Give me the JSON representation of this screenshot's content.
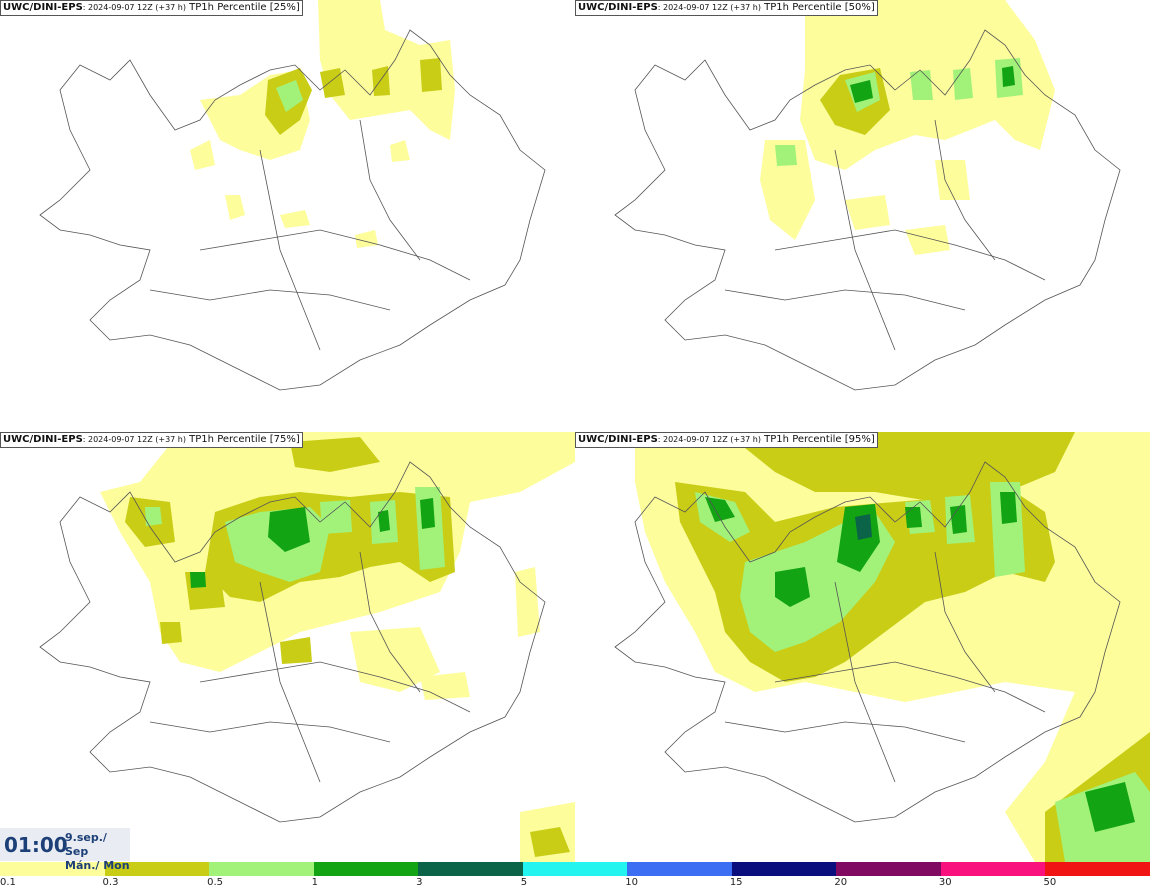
{
  "panels": [
    {
      "brand": "UWC/DINI-EPS",
      "meta": ": 2024-09-07 12Z (+37 h)",
      "product": "TP1h Percentile [25%]"
    },
    {
      "brand": "UWC/DINI-EPS",
      "meta": ": 2024-09-07 12Z (+37 h)",
      "product": "TP1h Percentile [50%]"
    },
    {
      "brand": "UWC/DINI-EPS",
      "meta": ": 2024-09-07 12Z (+37 h)",
      "product": "TP1h Percentile [75%]"
    },
    {
      "brand": "UWC/DINI-EPS",
      "meta": ": 2024-09-07 12Z (+37 h)",
      "product": "TP1h Percentile [95%]"
    }
  ],
  "valid_time": {
    "time": "01:00",
    "date_line1": "9.sep./ Sep",
    "date_line2": "Mán./ Mon"
  },
  "legend": {
    "colors": [
      "#fdfd9c",
      "#c9cd16",
      "#a2f27a",
      "#12a412",
      "#0b6447",
      "#23f4ef",
      "#3c6ef4",
      "#0b0f7e",
      "#800a62",
      "#f9127e",
      "#f01414"
    ],
    "labels": [
      "0.1",
      "0.3",
      "0.5",
      "1",
      "3",
      "5",
      "10",
      "15",
      "20",
      "30",
      "50"
    ]
  }
}
